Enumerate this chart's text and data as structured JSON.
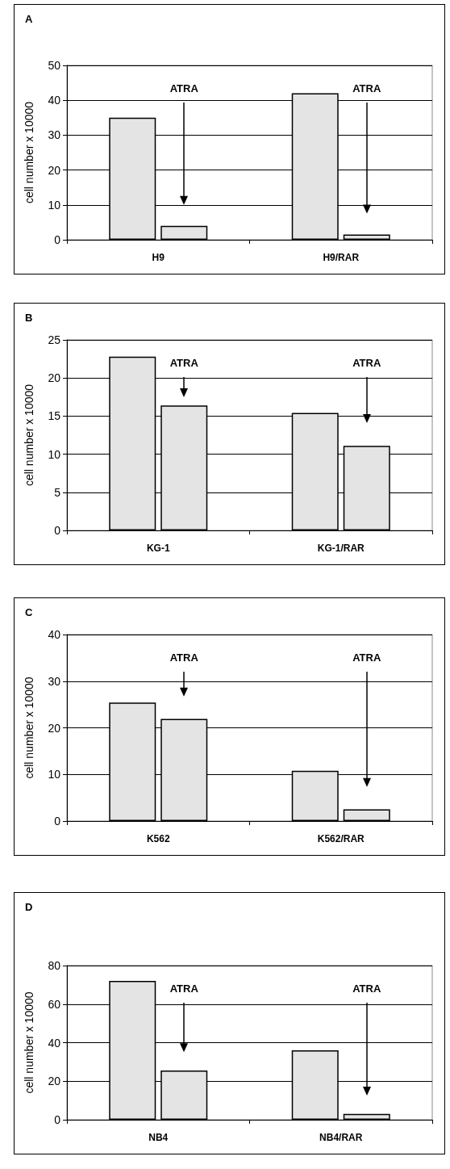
{
  "chart_data": [
    {
      "type": "bar",
      "title": "A",
      "ylabel": "cell number x 10000",
      "categories": [
        "H9",
        "H9/RAR"
      ],
      "series": [
        {
          "color": "#e4e4e4",
          "values": [
            35,
            42
          ]
        },
        {
          "color": "#e4e4e4",
          "values": [
            4,
            1.5
          ]
        }
      ],
      "ylim": [
        0,
        50
      ],
      "yticks": [
        0,
        10,
        20,
        30,
        40,
        50
      ],
      "grid": "y",
      "annotations": [
        "ATRA",
        "ATRA"
      ]
    },
    {
      "type": "bar",
      "title": "B",
      "ylabel": "cell number x 10000",
      "categories": [
        "KG-1",
        "KG-1/RAR"
      ],
      "series": [
        {
          "color": "#e4e4e4",
          "values": [
            22.8,
            15.4
          ]
        },
        {
          "color": "#e4e4e4",
          "values": [
            16.4,
            11.1
          ]
        }
      ],
      "ylim": [
        0,
        25
      ],
      "yticks": [
        0,
        5,
        10,
        15,
        20,
        25
      ],
      "grid": "y",
      "annotations": [
        "ATRA",
        "ATRA"
      ]
    },
    {
      "type": "bar",
      "title": "C",
      "ylabel": "cell number x 10000",
      "categories": [
        "K562",
        "K562/RAR"
      ],
      "series": [
        {
          "color": "#e4e4e4",
          "values": [
            25.4,
            10.8
          ]
        },
        {
          "color": "#e4e4e4",
          "values": [
            21.9,
            2.5
          ]
        }
      ],
      "ylim": [
        0,
        40
      ],
      "yticks": [
        0,
        10,
        20,
        30,
        40
      ],
      "grid": "y",
      "annotations": [
        "ATRA",
        "ATRA"
      ]
    },
    {
      "type": "bar",
      "title": "D",
      "ylabel": "cell number x 10000",
      "categories": [
        "NB4",
        "NB4/RAR"
      ],
      "series": [
        {
          "color": "#e4e4e4",
          "values": [
            72,
            36
          ]
        },
        {
          "color": "#e4e4e4",
          "values": [
            25.5,
            3
          ]
        }
      ],
      "ylim": [
        0,
        80
      ],
      "yticks": [
        0,
        20,
        40,
        60,
        80
      ],
      "grid": "y",
      "annotations": [
        "ATRA",
        "ATRA"
      ]
    }
  ]
}
